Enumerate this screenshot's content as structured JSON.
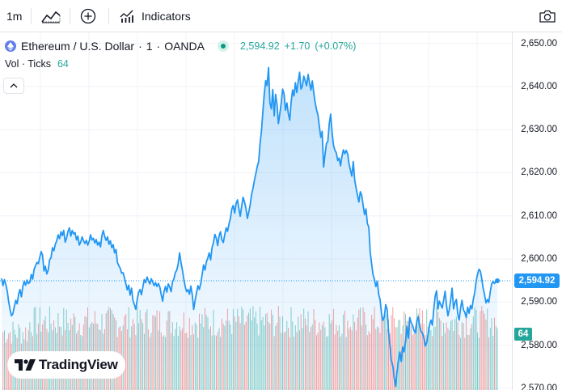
{
  "toolbar": {
    "interval": "1m",
    "indicators_label": "Indicators",
    "icons": [
      "chart-type-icon",
      "compare-icon",
      "indicators-icon",
      "camera-icon"
    ]
  },
  "legend": {
    "symbol_name": "Ethereum / U.S. Dollar",
    "interval": "1",
    "exchange": "OANDA",
    "separator": "·",
    "last_price": "2,594.92",
    "change": "+1.70",
    "change_pct": "(+0.07%)",
    "colors": {
      "up": "#26a69a",
      "line": "#2196f3",
      "symbol_icon": "#627eea"
    }
  },
  "volume_legend": {
    "label": "Vol · Ticks",
    "value": "64"
  },
  "price_tag": {
    "value": "2,594.92",
    "color": "#2196f3"
  },
  "volume_tag": {
    "value": "64",
    "color": "#26a69a"
  },
  "logo": {
    "text": "TradingView"
  },
  "chart_data": {
    "type": "area",
    "title": "",
    "y_axis": {
      "position": "right",
      "range": [
        2566,
        2652
      ],
      "ticks": [
        2650,
        2640,
        2630,
        2620,
        2610,
        2600,
        2590,
        2580,
        2570
      ],
      "tick_labels": [
        "2,650.00",
        "2,640.00",
        "2,630.00",
        "2,620.00",
        "2,610.00",
        "2,600.00",
        "2,590.00",
        "2,580.00",
        "2,570.00"
      ]
    },
    "grid": true,
    "last_price_line": 2594.92,
    "series": [
      {
        "kind": "area",
        "values": [
          2595.5,
          2593.8,
          2595.2,
          2594.1,
          2592.5,
          2590.1,
          2588.2,
          2586.8,
          2587.3,
          2588.9,
          2590.4,
          2589.6,
          2591.8,
          2592.9,
          2591.2,
          2593.6,
          2594.8,
          2593.9,
          2595.1,
          2594.3,
          2594.6,
          2596.4,
          2595.3,
          2597.6,
          2598.4,
          2599.2,
          2598.9,
          2600.4,
          2601.7,
          2600.9,
          2597.2,
          2598.3,
          2596.5,
          2597.4,
          2599.8,
          2600.3,
          2602.6,
          2601.9,
          2603.4,
          2604.2,
          2605.6,
          2604.7,
          2606.3,
          2605.4,
          2606.6,
          2603.9,
          2604.8,
          2606.4,
          2607.2,
          2605.3,
          2606.6,
          2605.8,
          2606.1,
          2604.4,
          2605.3,
          2603.2,
          2603.9,
          2605.1,
          2604.2,
          2603.6,
          2604.3,
          2603.2,
          2604.1,
          2605.6,
          2604.4,
          2604.8,
          2603.7,
          2604.5,
          2603.2,
          2603.9,
          2602.8,
          2605.4,
          2606.6,
          2605.2,
          2604.3,
          2605.1,
          2603.4,
          2604.2,
          2602.6,
          2603.3,
          2601.4,
          2602.2,
          2599.2,
          2598.4,
          2597.8,
          2596.7,
          2596.8,
          2595.6,
          2594.2,
          2592.8,
          2593.9,
          2591.6,
          2593.2,
          2590.4,
          2589.4,
          2588.3,
          2590.6,
          2592.2,
          2592.9,
          2591.7,
          2593.4,
          2595.2,
          2594.5,
          2595.8,
          2594.9,
          2594.2,
          2595.4,
          2594.6,
          2593.8,
          2594.5,
          2593.6,
          2594.3,
          2593.5,
          2591.8,
          2590.2,
          2592.4,
          2593.6,
          2592.3,
          2594.2,
          2593.5,
          2592.4,
          2594.7,
          2595.4,
          2596.8,
          2597.4,
          2598.8,
          2601.4,
          2599.2,
          2597.5,
          2595.3,
          2593.6,
          2592.4,
          2592.9,
          2591.8,
          2593.7,
          2591.6,
          2588.3,
          2590.4,
          2592.1,
          2593.8,
          2592.9,
          2594.2,
          2596.4,
          2598.6,
          2597.4,
          2599.3,
          2600.2,
          2601.4,
          2599.8,
          2602.6,
          2603.8,
          2605.7,
          2604.8,
          2603.1,
          2605.4,
          2606.3,
          2604.4,
          2603.8,
          2605.6,
          2607.2,
          2606.4,
          2608.1,
          2609.4,
          2611.6,
          2612.4,
          2610.6,
          2612.8,
          2613.7,
          2611.6,
          2609.9,
          2612.3,
          2614.3,
          2613.2,
          2611.8,
          2609.4,
          2610.8,
          2612.6,
          2614.9,
          2616.4,
          2618.2,
          2619.8,
          2621.4,
          2622.6,
          2626.8,
          2629.6,
          2634.2,
          2638.3,
          2641.4,
          2640.2,
          2644.4,
          2636.2,
          2634.8,
          2639.3,
          2633.2,
          2638.2,
          2635.8,
          2631.4,
          2633.6,
          2636.2,
          2639.4,
          2638.3,
          2634.5,
          2636.2,
          2633.8,
          2632.2,
          2636.3,
          2639.2,
          2637.8,
          2640.9,
          2638.6,
          2641.2,
          2643.3,
          2639.4,
          2640.2,
          2642.4,
          2641.3,
          2640.2,
          2642.8,
          2640.9,
          2639.2,
          2641.3,
          2638.6,
          2636.3,
          2634.6,
          2633.4,
          2630.8,
          2628.2,
          2629.6,
          2621.3,
          2624.2,
          2626.8,
          2627.2,
          2631.4,
          2633.6,
          2629.3,
          2626.4,
          2625.2,
          2624.6,
          2622.8,
          2623.4,
          2621.6,
          2623.8,
          2625.3,
          2624.4,
          2625.2,
          2624.4,
          2622.1,
          2620.6,
          2619.2,
          2622.6,
          2618.4,
          2616.4,
          2614.8,
          2613.2,
          2615.6,
          2614.8,
          2612.4,
          2610.3,
          2611.6,
          2608.2,
          2607.4,
          2601.6,
          2598.8,
          2596.4,
          2595.2,
          2593.6,
          2594.8,
          2591.8,
          2590.6,
          2587.4,
          2585.7,
          2586.6,
          2589.4,
          2588.2,
          2583.2,
          2579.8,
          2576.4,
          2575.2,
          2572.4,
          2570.4,
          2573.8,
          2576.3,
          2578.4,
          2576.2,
          2579.6,
          2578.4,
          2580.8,
          2584.4,
          2581.6,
          2586.4,
          2585.2,
          2584.6,
          2583.4,
          2582.8,
          2585.6,
          2586.6,
          2584.4,
          2583.2,
          2582.8,
          2581.6,
          2579.8,
          2580.6,
          2582.4,
          2584.7,
          2585.8,
          2584.6,
          2588.3,
          2591.4,
          2592.6,
          2588.4,
          2590.2,
          2589.4,
          2588.6,
          2590.4,
          2592.5,
          2589.4,
          2586.8,
          2588.2,
          2590.6,
          2593.2,
          2588.4,
          2589.9,
          2590.6,
          2587.2,
          2585.8,
          2588.6,
          2590.4,
          2588.2,
          2587.6,
          2586.4,
          2588.8,
          2587.4,
          2589.2,
          2588.4,
          2590.6,
          2592.2,
          2594.8,
          2596.4,
          2597.6,
          2597.2,
          2595.4,
          2593.2,
          2591.6,
          2589.8,
          2590.6,
          2589.9,
          2592.4,
          2594.2,
          2594.8,
          2594.3,
          2594.9,
          2594.92
        ]
      },
      {
        "kind": "volume",
        "name": "Vol · Ticks",
        "last_value": 64,
        "up_color": "#26a69a",
        "down_color": "#ef5350"
      }
    ]
  }
}
